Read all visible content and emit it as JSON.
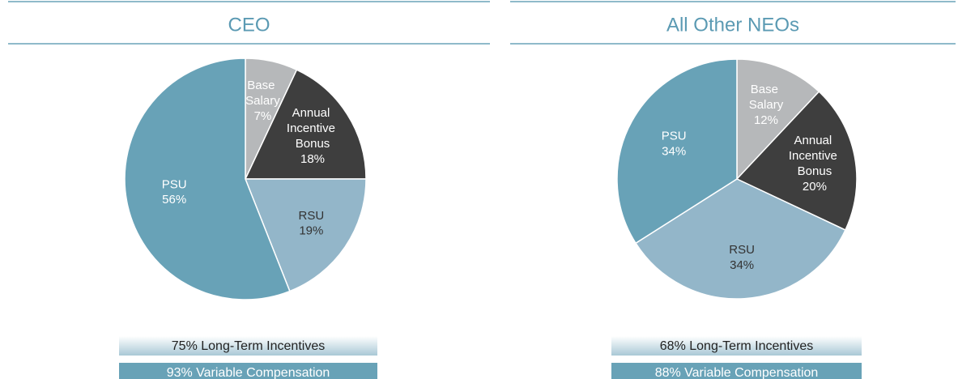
{
  "chart_data": [
    {
      "type": "pie",
      "title": "CEO",
      "categories": [
        "Base Salary",
        "Annual Incentive Bonus",
        "RSU",
        "PSU"
      ],
      "values": [
        7,
        18,
        19,
        56
      ],
      "value_labels": [
        "7%",
        "18%",
        "19%",
        "56%"
      ],
      "colors": [
        "#b6b8ba",
        "#3e3e3e",
        "#93b6c9",
        "#68a2b7"
      ],
      "annotations": [
        "75% Long-Term Incentives",
        "93% Variable Compensation"
      ]
    },
    {
      "type": "pie",
      "title": "All Other NEOs",
      "categories": [
        "Base Salary",
        "Annual Incentive Bonus",
        "RSU",
        "PSU"
      ],
      "values": [
        12,
        20,
        34,
        34
      ],
      "value_labels": [
        "12%",
        "20%",
        "34%",
        "34%"
      ],
      "colors": [
        "#b6b8ba",
        "#3e3e3e",
        "#93b6c9",
        "#68a2b7"
      ],
      "annotations": [
        "68% Long-Term Incentives",
        "88% Variable Compensation"
      ]
    }
  ]
}
